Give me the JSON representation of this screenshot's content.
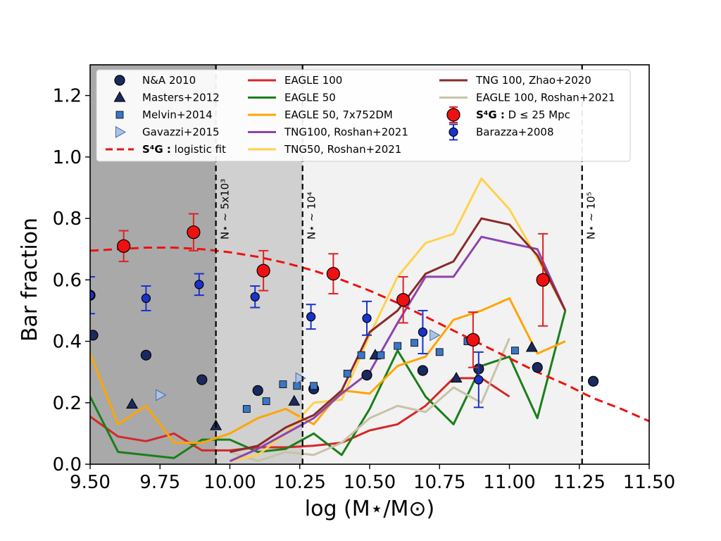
{
  "chart_data": {
    "type": "scatter",
    "xlabel": "log (M⋆/M⊙)",
    "ylabel": "Bar fraction",
    "xlim": [
      9.5,
      11.5
    ],
    "ylim": [
      0.0,
      1.3
    ],
    "xticks": [
      "9.50",
      "9.75",
      "10.00",
      "10.25",
      "10.50",
      "10.75",
      "11.00",
      "11.25",
      "11.50"
    ],
    "yticks": [
      "0.0",
      "0.2",
      "0.4",
      "0.6",
      "0.8",
      "1.0",
      "1.2"
    ],
    "grid": false,
    "legend_position": "top",
    "shaded_regions": [
      {
        "x0": 9.5,
        "x1": 9.95,
        "color": "#a9a9a9"
      },
      {
        "x0": 9.95,
        "x1": 10.26,
        "color": "#d0d0d0"
      },
      {
        "x0": 10.26,
        "x1": 11.26,
        "color": "#f2f2f2"
      }
    ],
    "vlines": [
      {
        "x": 9.95,
        "label": "N⋆ ~ 5x10³"
      },
      {
        "x": 10.26,
        "label": "N⋆ ~ 10⁴"
      },
      {
        "x": 11.26,
        "label": "N⋆ ~ 10⁵"
      }
    ],
    "legend": {
      "col1": [
        {
          "key": "na2010",
          "label": "N&A 2010"
        },
        {
          "key": "masters",
          "label": "Masters+2012"
        },
        {
          "key": "melvin",
          "label": "Melvin+2014"
        },
        {
          "key": "gavazzi",
          "label": "Gavazzi+2015"
        },
        {
          "key": "logistic",
          "label_bold": "S⁴G :",
          "label_rest": " logistic fit"
        }
      ],
      "col2": [
        {
          "key": "eagle100",
          "label": "EAGLE 100"
        },
        {
          "key": "eagle50",
          "label": "EAGLE 50"
        },
        {
          "key": "eagle50dm",
          "label": "EAGLE 50, 7x752DM"
        },
        {
          "key": "tng100r",
          "label": "TNG100, Roshan+2021"
        },
        {
          "key": "tng50r",
          "label": "TNG50, Roshan+2021"
        }
      ],
      "col3": [
        {
          "key": "tng100z",
          "label": "TNG 100, Zhao+2020"
        },
        {
          "key": "eagle100r",
          "label": "EAGLE 100, Roshan+2021"
        },
        {
          "key": "s4g",
          "label_bold": "S⁴G :",
          "label_rest": " D ≤ 25 Mpc"
        },
        {
          "key": "barazza",
          "label": "Barazza+2008"
        }
      ]
    },
    "series": [
      {
        "key": "eagle100",
        "kind": "line",
        "color": "#d62728",
        "x": [
          9.5,
          9.6,
          9.7,
          9.8,
          9.9,
          10.0,
          10.1,
          10.2,
          10.3,
          10.4,
          10.5,
          10.6,
          10.7,
          10.8,
          10.9,
          11.0
        ],
        "y": [
          0.155,
          0.09,
          0.075,
          0.1,
          0.045,
          0.045,
          0.055,
          0.055,
          0.06,
          0.07,
          0.11,
          0.13,
          0.19,
          0.28,
          0.28,
          0.22
        ]
      },
      {
        "key": "eagle50",
        "kind": "line",
        "color": "#1a7f1a",
        "x": [
          9.5,
          9.6,
          9.7,
          9.8,
          9.9,
          10.0,
          10.1,
          10.2,
          10.3,
          10.4,
          10.5,
          10.6,
          10.7,
          10.8,
          10.9,
          11.0,
          11.1,
          11.2
        ],
        "y": [
          0.22,
          0.04,
          0.03,
          0.02,
          0.08,
          0.08,
          0.04,
          0.05,
          0.1,
          0.03,
          0.18,
          0.37,
          0.22,
          0.13,
          0.32,
          0.35,
          0.15,
          0.5
        ]
      },
      {
        "key": "eagle50dm",
        "kind": "line",
        "color": "#ffa500",
        "x": [
          9.5,
          9.6,
          9.7,
          9.8,
          9.9,
          10.0,
          10.1,
          10.2,
          10.3,
          10.4,
          10.5,
          10.6,
          10.7,
          10.8,
          10.9,
          11.0,
          11.1,
          11.2
        ],
        "y": [
          0.36,
          0.13,
          0.19,
          0.07,
          0.07,
          0.1,
          0.15,
          0.18,
          0.13,
          0.24,
          0.23,
          0.32,
          0.35,
          0.47,
          0.5,
          0.54,
          0.36,
          0.4
        ]
      },
      {
        "key": "eagle100r",
        "kind": "line",
        "color": "#c8c2a8",
        "x": [
          10.0,
          10.1,
          10.2,
          10.3,
          10.4,
          10.5,
          10.6,
          10.7,
          10.8,
          10.9,
          11.0
        ],
        "y": [
          0.04,
          0.01,
          0.04,
          0.03,
          0.07,
          0.15,
          0.19,
          0.17,
          0.25,
          0.2,
          0.41
        ]
      },
      {
        "key": "tng50r",
        "kind": "line",
        "color": "#ffd24d",
        "x": [
          10.0,
          10.1,
          10.2,
          10.3,
          10.4,
          10.5,
          10.6,
          10.7,
          10.8,
          10.9,
          11.0,
          11.1,
          11.2
        ],
        "y": [
          0.01,
          0.03,
          0.1,
          0.2,
          0.21,
          0.42,
          0.61,
          0.72,
          0.75,
          0.93,
          0.83,
          0.67,
          0.5
        ]
      },
      {
        "key": "tng100r",
        "kind": "line",
        "color": "#8e44ad",
        "x": [
          10.0,
          10.1,
          10.2,
          10.3,
          10.4,
          10.5,
          10.6,
          10.7,
          10.8,
          10.9,
          11.0,
          11.1,
          11.2
        ],
        "y": [
          0.01,
          0.05,
          0.1,
          0.15,
          0.23,
          0.3,
          0.46,
          0.61,
          0.61,
          0.74,
          0.72,
          0.7,
          0.5
        ]
      },
      {
        "key": "tng100z",
        "kind": "line",
        "color": "#8b2a2a",
        "x": [
          10.0,
          10.1,
          10.2,
          10.3,
          10.4,
          10.5,
          10.6,
          10.7,
          10.8,
          10.9,
          11.0,
          11.1,
          11.2
        ],
        "y": [
          0.04,
          0.06,
          0.12,
          0.16,
          0.24,
          0.43,
          0.5,
          0.62,
          0.66,
          0.8,
          0.78,
          0.68,
          0.5
        ]
      },
      {
        "key": "logistic",
        "kind": "dashed",
        "color": "#ee1111",
        "x": [
          9.5,
          9.6,
          9.7,
          9.8,
          9.9,
          10.0,
          10.1,
          10.2,
          10.3,
          10.4,
          10.5,
          10.6,
          10.7,
          10.8,
          10.9,
          11.0,
          11.1,
          11.2,
          11.3,
          11.4,
          11.5
        ],
        "y": [
          0.695,
          0.7,
          0.705,
          0.705,
          0.7,
          0.69,
          0.675,
          0.655,
          0.63,
          0.6,
          0.565,
          0.525,
          0.48,
          0.435,
          0.39,
          0.345,
          0.3,
          0.26,
          0.215,
          0.18,
          0.14
        ]
      },
      {
        "key": "na2010",
        "kind": "marker",
        "marker": "circle",
        "color": "#1a2a5e",
        "size": 7,
        "x": [
          9.5,
          9.51,
          9.7,
          9.9,
          10.1,
          10.3,
          10.49,
          10.69,
          10.89,
          11.1,
          11.3
        ],
        "y": [
          0.55,
          0.42,
          0.355,
          0.275,
          0.24,
          0.245,
          0.29,
          0.305,
          0.31,
          0.315,
          0.27
        ]
      },
      {
        "key": "masters",
        "kind": "marker",
        "marker": "triangle",
        "color": "#1a2a5e",
        "size": 8,
        "x": [
          9.65,
          9.95,
          10.23,
          10.52,
          10.81,
          11.08
        ],
        "y": [
          0.195,
          0.125,
          0.205,
          0.355,
          0.28,
          0.38
        ]
      },
      {
        "key": "melvin",
        "kind": "marker",
        "marker": "square",
        "color": "#3a76c4",
        "size": 5,
        "x": [
          10.06,
          10.13,
          10.19,
          10.24,
          10.3,
          10.42,
          10.47,
          10.54,
          10.6,
          10.66,
          10.75,
          10.85,
          11.02
        ],
        "y": [
          0.18,
          0.205,
          0.26,
          0.255,
          0.255,
          0.295,
          0.355,
          0.355,
          0.385,
          0.395,
          0.365,
          0.4,
          0.37
        ]
      },
      {
        "key": "gavazzi",
        "kind": "marker",
        "marker": "triangle-right",
        "color": "#a9c4e8",
        "size": 8,
        "x": [
          9.75,
          10.25,
          10.73
        ],
        "y": [
          0.225,
          0.28,
          0.42
        ]
      },
      {
        "key": "barazza",
        "kind": "errorbar",
        "marker": "circle",
        "color": "#1a33cc",
        "ecolor": "#1a33cc",
        "size": 6,
        "x": [
          9.5,
          9.7,
          9.89,
          10.09,
          10.29,
          10.49,
          10.69,
          10.89
        ],
        "y": [
          0.55,
          0.54,
          0.585,
          0.545,
          0.48,
          0.475,
          0.43,
          0.275
        ],
        "err": [
          0.06,
          0.04,
          0.035,
          0.035,
          0.04,
          0.055,
          0.07,
          0.09
        ]
      },
      {
        "key": "s4g",
        "kind": "errorbar",
        "marker": "circle",
        "color": "#ee1111",
        "ecolor": "#dd2222",
        "size": 9,
        "x": [
          9.62,
          9.87,
          10.12,
          10.37,
          10.62,
          10.87,
          11.12
        ],
        "y": [
          0.71,
          0.755,
          0.63,
          0.62,
          0.535,
          0.405,
          0.6
        ],
        "err": [
          0.05,
          0.06,
          0.065,
          0.065,
          0.075,
          0.09,
          0.15
        ]
      }
    ]
  }
}
